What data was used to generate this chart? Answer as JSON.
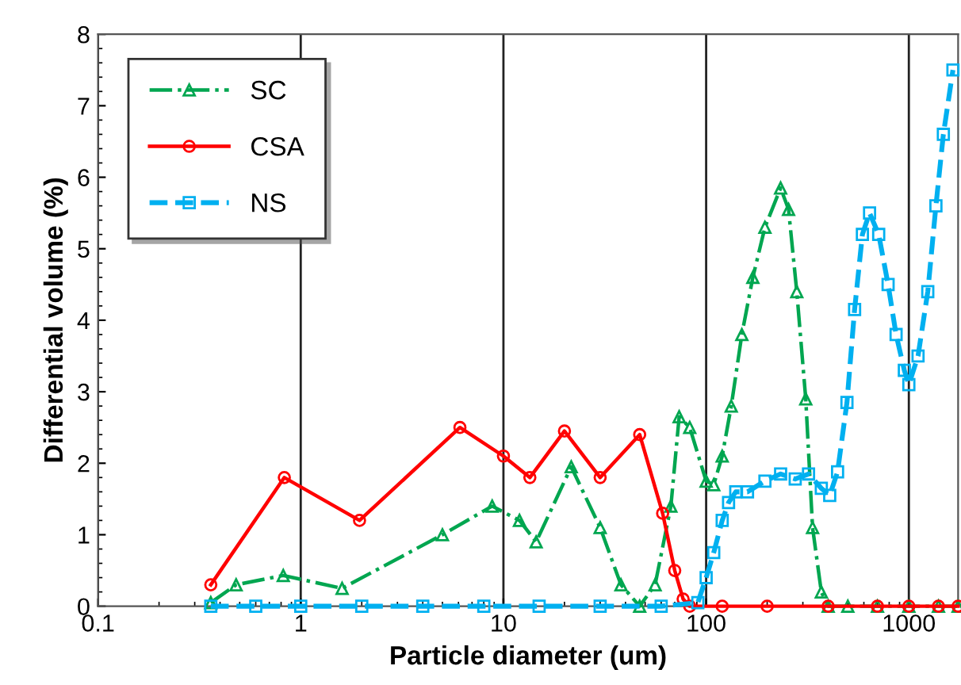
{
  "chart_data": {
    "type": "line",
    "xlabel": "Particle diameter (um)",
    "ylabel": "Differential volume (%)",
    "log": "x",
    "xlim": [
      0.1,
      1750
    ],
    "xticks": [
      0.1,
      1,
      10,
      100,
      1000
    ],
    "ylim": [
      0,
      8
    ],
    "yticks": [
      0,
      1,
      2,
      3,
      4,
      5,
      6,
      7,
      8
    ],
    "grid": "x",
    "legend": "top left",
    "series": [
      {
        "name": "SC",
        "color": "#00a650",
        "marker": "triangle",
        "line_style": "dashdot",
        "x": [
          0.36,
          0.48,
          0.82,
          1.6,
          5,
          8.8,
          12,
          14.5,
          21.6,
          30,
          38,
          47,
          56,
          67,
          73.6,
          83,
          100,
          109,
          120,
          133,
          150,
          170,
          195,
          233,
          255,
          280,
          310,
          335,
          370,
          400,
          500,
          700,
          1000,
          1400,
          1750
        ],
        "values": [
          0.05,
          0.3,
          0.43,
          0.25,
          1.0,
          1.4,
          1.2,
          0.9,
          1.95,
          1.1,
          0.3,
          0,
          0.3,
          1.4,
          2.65,
          2.5,
          1.75,
          1.7,
          2.1,
          2.8,
          3.8,
          4.6,
          5.3,
          5.85,
          5.55,
          4.4,
          2.9,
          1.1,
          0.2,
          0,
          0,
          0,
          0,
          0,
          0
        ]
      },
      {
        "name": "CSA",
        "color": "#ff0000",
        "marker": "circle",
        "line_style": "solid",
        "x": [
          0.36,
          0.83,
          1.95,
          6.1,
          10,
          13.5,
          20,
          30,
          47,
          61,
          70,
          77,
          83,
          120,
          200,
          400,
          700,
          1000,
          1400,
          1750
        ],
        "values": [
          0.3,
          1.8,
          1.2,
          2.5,
          2.1,
          1.8,
          2.45,
          1.8,
          2.4,
          1.3,
          0.5,
          0.1,
          0,
          0,
          0,
          0,
          0,
          0,
          0,
          0
        ]
      },
      {
        "name": "NS",
        "color": "#00b0f0",
        "marker": "square",
        "line_style": "dashed",
        "x": [
          0.36,
          0.6,
          1,
          2,
          4,
          8,
          15,
          30,
          60,
          91,
          100,
          109,
          120,
          129,
          140,
          160,
          195,
          233,
          275,
          320,
          370,
          407,
          445,
          495,
          540,
          590,
          640,
          710,
          790,
          865,
          950,
          1000,
          1110,
          1240,
          1360,
          1480,
          1650
        ],
        "values": [
          0,
          0,
          0,
          0,
          0,
          0,
          0,
          0,
          0,
          0.05,
          0.4,
          0.75,
          1.2,
          1.45,
          1.6,
          1.6,
          1.75,
          1.85,
          1.78,
          1.85,
          1.65,
          1.55,
          1.88,
          2.85,
          4.15,
          5.2,
          5.5,
          5.2,
          4.5,
          3.8,
          3.3,
          3.1,
          3.5,
          4.4,
          5.6,
          6.6,
          7.5
        ]
      }
    ]
  }
}
